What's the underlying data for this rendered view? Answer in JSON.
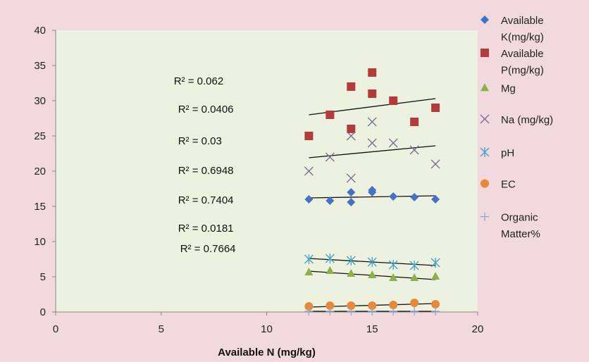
{
  "chart_data": {
    "type": "scatter",
    "xlabel": "Available N (mg/kg)",
    "ylabel": "",
    "xlim": [
      0,
      20
    ],
    "ylim": [
      0,
      40
    ],
    "xticks": [
      "0",
      "5",
      "10",
      "15",
      "20"
    ],
    "yticks": [
      "0",
      "5",
      "10",
      "15",
      "20",
      "25",
      "30",
      "35",
      "40"
    ],
    "grid": false,
    "legend_position": "right",
    "colors": {
      "outer_background": "#f2d9dd",
      "plot_background": "#ecf1e0",
      "axis": "#888888",
      "trendline": "#111111"
    },
    "r_squared_labels": [
      {
        "text": "R² = 0.062",
        "x": 5.6,
        "y": 32.3
      },
      {
        "text": "R² = 0.0406",
        "x": 5.8,
        "y": 28.3
      },
      {
        "text": "R² = 0.03",
        "x": 5.8,
        "y": 23.8
      },
      {
        "text": "R² = 0.6948",
        "x": 5.8,
        "y": 19.6
      },
      {
        "text": "R² = 0.7404",
        "x": 5.8,
        "y": 15.4
      },
      {
        "text": "R² = 0.0181",
        "x": 5.8,
        "y": 11.4
      },
      {
        "text": "R² = 0.7664",
        "x": 5.9,
        "y": 8.5
      }
    ],
    "series": [
      {
        "name": "Available K(mg/kg)",
        "legend_lines": [
          "Available",
          "K(mg/kg)"
        ],
        "marker": "diamond",
        "color": "#4472c4",
        "points": [
          [
            12,
            16
          ],
          [
            13,
            15.8
          ],
          [
            14,
            17
          ],
          [
            14,
            15.6
          ],
          [
            15,
            17
          ],
          [
            15,
            17.3
          ],
          [
            16,
            16.4
          ],
          [
            17,
            16.3
          ],
          [
            18,
            16
          ]
        ],
        "trendline": [
          [
            12,
            16.2
          ],
          [
            18,
            16.5
          ]
        ]
      },
      {
        "name": "Available P(mg/kg)",
        "legend_lines": [
          "Available",
          "P(mg/kg)"
        ],
        "marker": "square",
        "color": "#b33b3b",
        "points": [
          [
            12,
            25
          ],
          [
            13,
            28
          ],
          [
            14,
            32
          ],
          [
            14,
            26
          ],
          [
            15,
            34
          ],
          [
            15,
            31
          ],
          [
            16,
            30
          ],
          [
            17,
            27
          ],
          [
            18,
            29
          ]
        ],
        "trendline": [
          [
            12,
            28
          ],
          [
            18,
            30.3
          ]
        ]
      },
      {
        "name": "Mg",
        "legend_lines": [
          "Mg"
        ],
        "marker": "triangle",
        "color": "#8db04a",
        "points": [
          [
            12,
            5.7
          ],
          [
            13,
            5.9
          ],
          [
            14,
            5.5
          ],
          [
            15,
            5.3
          ],
          [
            16,
            4.9
          ],
          [
            17,
            4.9
          ],
          [
            18,
            5.1
          ]
        ],
        "trendline": [
          [
            12,
            5.8
          ],
          [
            18,
            4.6
          ]
        ]
      },
      {
        "name": "Na (mg/kg)",
        "legend_lines": [
          "Na (mg/kg)"
        ],
        "marker": "x",
        "color": "#7b6a96",
        "points": [
          [
            12,
            20
          ],
          [
            13,
            22
          ],
          [
            14,
            25
          ],
          [
            14,
            19
          ],
          [
            15,
            27
          ],
          [
            15,
            24
          ],
          [
            16,
            24
          ],
          [
            17,
            23
          ],
          [
            18,
            21
          ]
        ],
        "trendline": [
          [
            12,
            21.9
          ],
          [
            18,
            23.6
          ]
        ]
      },
      {
        "name": "pH",
        "legend_lines": [
          "pH"
        ],
        "marker": "asterisk",
        "color": "#3fa3c4",
        "points": [
          [
            12,
            7.5
          ],
          [
            13,
            7.6
          ],
          [
            14,
            7.3
          ],
          [
            15,
            7.1
          ],
          [
            16,
            6.7
          ],
          [
            17,
            6.6
          ],
          [
            18,
            7
          ]
        ],
        "trendline": [
          [
            12,
            7.6
          ],
          [
            18,
            6.6
          ]
        ]
      },
      {
        "name": "EC",
        "legend_lines": [
          "EC"
        ],
        "marker": "circle",
        "color": "#e8893a",
        "points": [
          [
            12,
            0.8
          ],
          [
            13,
            0.9
          ],
          [
            14,
            0.9
          ],
          [
            15,
            0.9
          ],
          [
            16,
            1
          ],
          [
            17,
            1.3
          ],
          [
            18,
            1.1
          ]
        ],
        "trendline": [
          [
            12,
            0.7
          ],
          [
            18,
            1.2
          ]
        ]
      },
      {
        "name": "Organic Matter%",
        "legend_lines": [
          "Organic",
          "Matter%"
        ],
        "marker": "plus",
        "color": "#8fa9d3",
        "points": [
          [
            12,
            0.1
          ],
          [
            13,
            0.1
          ],
          [
            14,
            0.1
          ],
          [
            15,
            0.1
          ],
          [
            16,
            0.1
          ],
          [
            17,
            0.1
          ],
          [
            18,
            0.1
          ]
        ],
        "trendline": [
          [
            12,
            0.1
          ],
          [
            18,
            0.1
          ]
        ]
      }
    ]
  }
}
